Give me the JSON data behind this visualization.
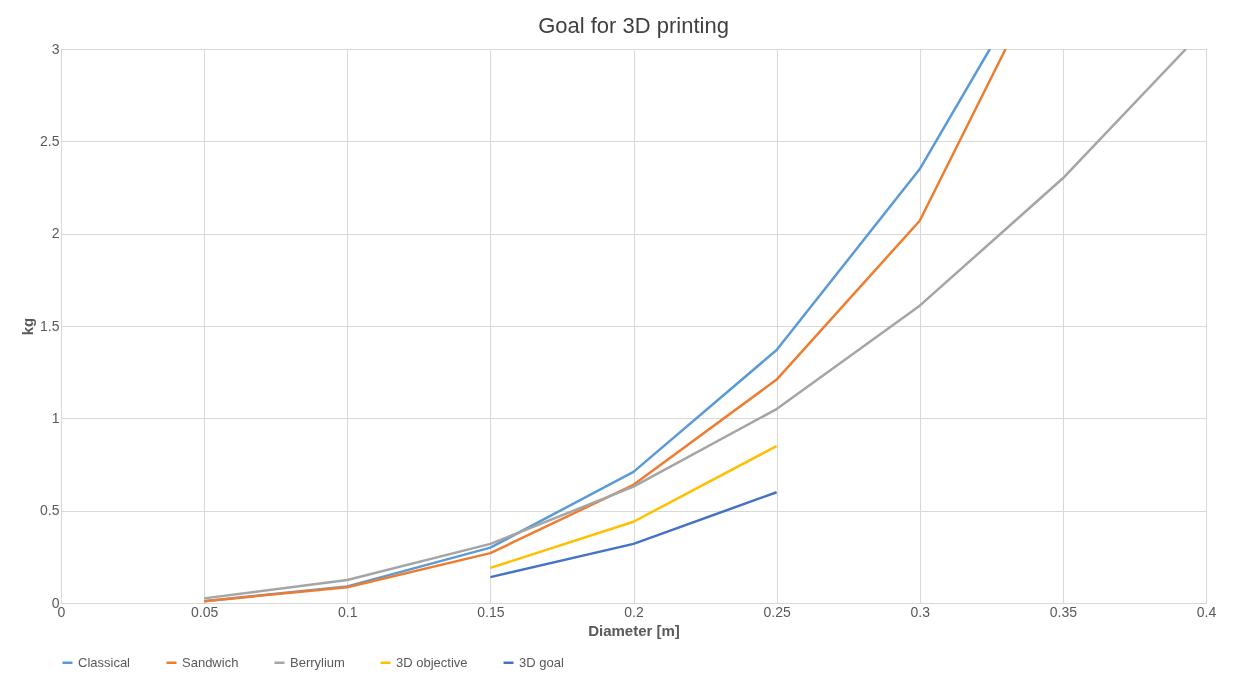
{
  "chart_data": {
    "type": "line",
    "title": "Goal for 3D printing",
    "xlabel": "Diameter [m]",
    "ylabel": "kg",
    "xlim": [
      0,
      0.4
    ],
    "xticks": [
      0,
      0.05,
      0.1,
      0.15,
      0.2,
      0.25,
      0.3,
      0.35,
      0.4
    ],
    "ylim": [
      0,
      3
    ],
    "yticks": [
      0,
      0.5,
      1,
      1.5,
      2,
      2.5,
      3
    ],
    "grid": true,
    "legend": "bottom",
    "marker": "none",
    "line_style": "solid",
    "series": [
      {
        "name": "Classical",
        "color": "#5b9bd5",
        "x": [
          0.05,
          0.1,
          0.15,
          0.2,
          0.25,
          0.3,
          0.3245
        ],
        "values": [
          0.01,
          0.09,
          0.3,
          0.71,
          1.37,
          2.35,
          3
        ]
      },
      {
        "name": "Sandwich",
        "color": "#ed7d31",
        "x": [
          0.05,
          0.1,
          0.15,
          0.2,
          0.25,
          0.3,
          0.33
        ],
        "values": [
          0.01,
          0.085,
          0.27,
          0.64,
          1.21,
          2.07,
          3
        ]
      },
      {
        "name": "Berrylium",
        "color": "#a5a5a5",
        "x": [
          0.05,
          0.1,
          0.15,
          0.2,
          0.25,
          0.3,
          0.35,
          0.393
        ],
        "values": [
          0.025,
          0.125,
          0.32,
          0.63,
          1.05,
          1.61,
          2.3,
          3
        ]
      },
      {
        "name": "3D objective",
        "color": "#ffc000",
        "x": [
          0.15,
          0.2,
          0.25
        ],
        "values": [
          0.19,
          0.44,
          0.85
        ]
      },
      {
        "name": "3D goal",
        "color": "#4472c4",
        "x": [
          0.15,
          0.2,
          0.25
        ],
        "values": [
          0.14,
          0.32,
          0.6
        ]
      }
    ]
  }
}
